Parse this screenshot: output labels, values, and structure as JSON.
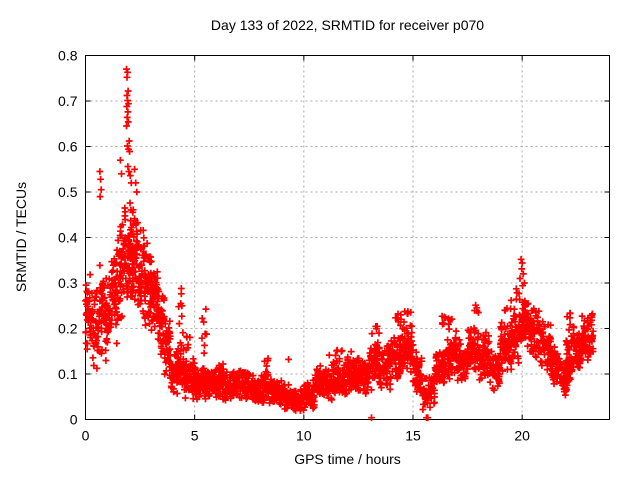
{
  "chart_data": {
    "type": "scatter",
    "title": "Day 133 of 2022, SRMTID for receiver p070",
    "xlabel": "GPS time / hours",
    "ylabel": "SRMTID / TECUs",
    "xlim": [
      0,
      24
    ],
    "ylim": [
      0,
      0.8
    ],
    "x_ticks": [
      0,
      5,
      10,
      15,
      20
    ],
    "x_tick_labels": [
      "0",
      "5",
      "10",
      "15",
      "20"
    ],
    "y_ticks": [
      0,
      0.1,
      0.2,
      0.3,
      0.4,
      0.5,
      0.6,
      0.7,
      0.8
    ],
    "y_tick_labels": [
      "0",
      "0.1",
      "0.2",
      "0.3",
      "0.4",
      "0.5",
      "0.6",
      "0.7",
      "0.8"
    ],
    "grid": true,
    "legend": "none",
    "marker": "plus",
    "marker_color": "#ff0000",
    "grid_color": "#aaaaaa",
    "border_color": "#000000",
    "background_color": "#ffffff",
    "seed": 42,
    "data_representation": "density_bins are [start_hour, end_hour, min_TECU, max_TECU, point_count] estimated from the dense scatter; outlier_points are individually visible extreme points [hour, TECU]",
    "density_bins": [
      [
        0.0,
        0.3,
        0.13,
        0.33,
        40
      ],
      [
        0.3,
        0.6,
        0.1,
        0.3,
        36
      ],
      [
        0.6,
        0.9,
        0.13,
        0.35,
        40
      ],
      [
        0.9,
        1.2,
        0.12,
        0.33,
        40
      ],
      [
        1.2,
        1.5,
        0.16,
        0.4,
        46
      ],
      [
        1.5,
        1.8,
        0.2,
        0.46,
        50
      ],
      [
        1.8,
        2.1,
        0.22,
        0.5,
        52
      ],
      [
        2.1,
        2.4,
        0.22,
        0.47,
        52
      ],
      [
        2.4,
        2.7,
        0.2,
        0.44,
        48
      ],
      [
        2.7,
        3.0,
        0.2,
        0.4,
        48
      ],
      [
        3.0,
        3.3,
        0.18,
        0.37,
        48
      ],
      [
        3.3,
        3.6,
        0.12,
        0.33,
        44
      ],
      [
        3.6,
        3.9,
        0.07,
        0.25,
        40
      ],
      [
        3.9,
        4.2,
        0.05,
        0.16,
        38
      ],
      [
        4.2,
        4.5,
        0.05,
        0.17,
        38
      ],
      [
        4.25,
        4.5,
        0.17,
        0.3,
        8
      ],
      [
        4.5,
        5.0,
        0.04,
        0.14,
        55
      ],
      [
        4.6,
        4.85,
        0.14,
        0.2,
        6
      ],
      [
        5.0,
        5.5,
        0.04,
        0.13,
        60
      ],
      [
        5.3,
        5.55,
        0.13,
        0.25,
        8
      ],
      [
        5.5,
        6.0,
        0.04,
        0.12,
        60
      ],
      [
        6.0,
        6.5,
        0.04,
        0.12,
        60
      ],
      [
        6.5,
        7.0,
        0.03,
        0.11,
        60
      ],
      [
        7.0,
        7.5,
        0.04,
        0.12,
        60
      ],
      [
        7.5,
        8.0,
        0.03,
        0.1,
        60
      ],
      [
        8.0,
        8.5,
        0.03,
        0.11,
        60
      ],
      [
        8.2,
        8.45,
        0.11,
        0.15,
        4
      ],
      [
        8.5,
        9.0,
        0.02,
        0.09,
        58
      ],
      [
        9.0,
        9.5,
        0.02,
        0.08,
        55
      ],
      [
        9.5,
        10.0,
        0.01,
        0.07,
        55
      ],
      [
        10.0,
        10.5,
        0.02,
        0.09,
        55
      ],
      [
        10.5,
        11.0,
        0.04,
        0.12,
        60
      ],
      [
        11.0,
        11.5,
        0.04,
        0.13,
        60
      ],
      [
        11.0,
        12.2,
        0.13,
        0.16,
        8
      ],
      [
        11.5,
        12.0,
        0.05,
        0.13,
        60
      ],
      [
        12.0,
        12.5,
        0.05,
        0.14,
        60
      ],
      [
        12.5,
        13.0,
        0.05,
        0.14,
        60
      ],
      [
        13.0,
        13.5,
        0.06,
        0.18,
        55
      ],
      [
        13.1,
        13.45,
        0.18,
        0.22,
        5
      ],
      [
        13.5,
        14.0,
        0.06,
        0.18,
        55
      ],
      [
        14.0,
        14.5,
        0.08,
        0.2,
        60
      ],
      [
        14.1,
        14.5,
        0.2,
        0.25,
        7
      ],
      [
        14.5,
        15.0,
        0.1,
        0.22,
        65
      ],
      [
        14.6,
        14.9,
        0.22,
        0.25,
        5
      ],
      [
        15.0,
        15.4,
        0.05,
        0.16,
        48
      ],
      [
        15.4,
        16.0,
        0.02,
        0.1,
        55
      ],
      [
        16.0,
        16.5,
        0.06,
        0.17,
        60
      ],
      [
        16.2,
        16.5,
        0.17,
        0.23,
        6
      ],
      [
        16.5,
        17.0,
        0.08,
        0.2,
        60
      ],
      [
        16.6,
        16.9,
        0.2,
        0.24,
        4
      ],
      [
        17.0,
        17.5,
        0.08,
        0.18,
        60
      ],
      [
        17.5,
        18.0,
        0.1,
        0.22,
        60
      ],
      [
        17.8,
        18.05,
        0.22,
        0.26,
        5
      ],
      [
        18.0,
        18.5,
        0.08,
        0.2,
        60
      ],
      [
        18.5,
        19.0,
        0.06,
        0.16,
        55
      ],
      [
        19.0,
        19.5,
        0.1,
        0.22,
        60
      ],
      [
        19.2,
        19.5,
        0.22,
        0.27,
        5
      ],
      [
        19.5,
        20.0,
        0.12,
        0.25,
        60
      ],
      [
        19.7,
        20.0,
        0.25,
        0.29,
        5
      ],
      [
        20.0,
        20.3,
        0.15,
        0.28,
        45
      ],
      [
        20.3,
        20.8,
        0.12,
        0.26,
        55
      ],
      [
        20.8,
        21.3,
        0.1,
        0.22,
        55
      ],
      [
        21.3,
        21.8,
        0.07,
        0.17,
        55
      ],
      [
        21.8,
        22.1,
        0.05,
        0.13,
        38
      ],
      [
        22.0,
        22.3,
        0.08,
        0.2,
        40
      ],
      [
        22.05,
        22.2,
        0.2,
        0.25,
        5
      ],
      [
        22.3,
        22.7,
        0.1,
        0.22,
        50
      ],
      [
        22.7,
        23.25,
        0.11,
        0.24,
        70
      ]
    ],
    "outlier_points": [
      [
        1.88,
        0.77
      ],
      [
        1.93,
        0.763
      ],
      [
        1.9,
        0.752
      ],
      [
        1.95,
        0.722
      ],
      [
        1.9,
        0.712
      ],
      [
        1.93,
        0.701
      ],
      [
        1.97,
        0.694
      ],
      [
        1.89,
        0.688
      ],
      [
        1.94,
        0.676
      ],
      [
        1.91,
        0.664
      ],
      [
        1.96,
        0.654
      ],
      [
        1.88,
        0.645
      ],
      [
        2.0,
        0.612
      ],
      [
        1.92,
        0.601
      ],
      [
        1.97,
        0.594
      ],
      [
        2.02,
        0.589
      ],
      [
        1.94,
        0.556
      ],
      [
        1.99,
        0.545
      ],
      [
        2.05,
        0.536
      ],
      [
        2.1,
        0.52
      ],
      [
        0.66,
        0.545
      ],
      [
        0.69,
        0.528
      ],
      [
        0.72,
        0.505
      ],
      [
        0.67,
        0.49
      ],
      [
        2.25,
        0.55
      ],
      [
        2.3,
        0.52
      ],
      [
        2.35,
        0.5
      ],
      [
        1.6,
        0.57
      ],
      [
        1.65,
        0.54
      ],
      [
        6.3,
        0.122
      ],
      [
        9.3,
        0.132
      ],
      [
        13.1,
        0.004
      ],
      [
        15.62,
        0.004
      ],
      [
        15.68,
        0.004
      ],
      [
        19.95,
        0.352
      ],
      [
        20.0,
        0.344
      ],
      [
        19.98,
        0.331
      ],
      [
        20.05,
        0.32
      ],
      [
        19.9,
        0.31
      ],
      [
        20.1,
        0.3
      ],
      [
        20.02,
        0.294
      ]
    ]
  }
}
